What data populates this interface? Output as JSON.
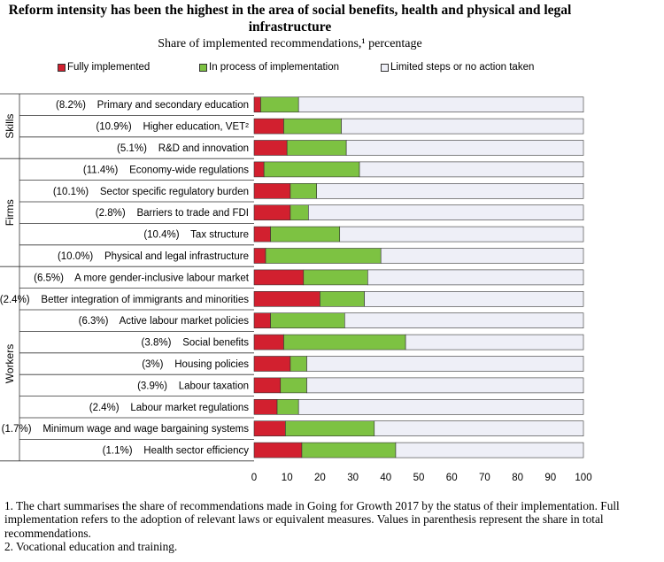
{
  "title": "Reform intensity has been the highest in the area of social benefits, health and physical and legal infrastructure",
  "subtitle": "Share of implemented recommendations,¹ percentage",
  "colors": {
    "fully": "#D2202F",
    "process": "#7DC242",
    "limited": "#EEEFF7"
  },
  "chart_data": {
    "type": "bar",
    "orientation": "horizontal",
    "stacked": true,
    "title": "Reform intensity has been the highest in the area of social benefits, health and physical and legal infrastructure",
    "subtitle": "Share of implemented recommendations,¹ percentage",
    "xlim": [
      0,
      100
    ],
    "xticks": [
      "0",
      "10",
      "20",
      "30",
      "40",
      "50",
      "60",
      "70",
      "80",
      "90",
      "100"
    ],
    "legend": {
      "position": "top",
      "labels": [
        "Fully implemented",
        "In process of implementation",
        "Limited steps or no action taken"
      ]
    },
    "groups": [
      {
        "name": "Skills",
        "start": 0,
        "count": 3
      },
      {
        "name": "Firms",
        "start": 3,
        "count": 5
      },
      {
        "name": "Workers",
        "start": 8,
        "count": 9
      }
    ],
    "categories": [
      "(8.2%)    Primary and secondary education",
      "(10.9%)    Higher education, VET²",
      "(5.1%)    R&D and innovation",
      "(11.4%)    Economy-wide regulations",
      "(10.1%)    Sector specific regulatory burden",
      "(2.8%)    Barriers to trade and FDI",
      "(10.4%)    Tax structure",
      "(10.0%)    Physical and legal infrastructure",
      "(6.5%)    A more gender-inclusive labour market",
      "(2.4%)    Better integration of immigrants and minorities",
      "(6.3%)    Active labour market policies",
      "(3.8%)    Social benefits",
      "(3%)    Housing policies",
      "(3.9%)    Labour taxation",
      "(2.4%)    Labour market regulations",
      "(1.7%)    Minimum wage and wage bargaining systems",
      "(1.1%)    Health sector efficiency"
    ],
    "series": [
      {
        "name": "Fully implemented",
        "values": [
          2,
          9,
          10,
          3,
          11,
          11,
          5,
          3.5,
          15,
          20,
          5,
          9,
          11,
          8,
          7,
          9.5,
          14.5
        ]
      },
      {
        "name": "In process of implementation",
        "values": [
          11.5,
          17.5,
          18,
          29,
          8,
          5.5,
          21,
          35,
          19.5,
          13.5,
          22.5,
          37,
          5,
          8,
          6.5,
          27,
          28.5
        ]
      },
      {
        "name": "Limited steps or no action taken",
        "values": [
          86.5,
          73.5,
          72,
          68,
          81,
          83.5,
          74,
          61.5,
          65.5,
          66.5,
          72.5,
          54,
          84,
          84,
          86.5,
          63.5,
          57
        ]
      }
    ]
  },
  "footnotes": [
    "1. The chart summarises the share of recommendations made in Going for Growth 2017 by the status of their implementation. Full implementation refers to the adoption of relevant laws or equivalent measures. Values in parenthesis represent the share in total recommendations.",
    "2. Vocational education and training."
  ]
}
